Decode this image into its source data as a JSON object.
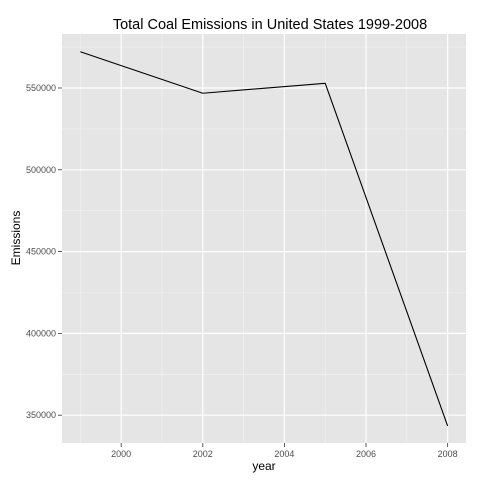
{
  "chart_data": {
    "type": "line",
    "title": "Total Coal Emissions in United States 1999-2008",
    "xlabel": "year",
    "ylabel": "Emissions",
    "x": [
      1999,
      2002,
      2005,
      2008
    ],
    "series": [
      {
        "values": [
          572126,
          546789,
          552881,
          343432
        ]
      }
    ],
    "xlim": [
      1998.55,
      2008.45
    ],
    "ylim": [
      333000,
      583000
    ],
    "xticks": [
      2000,
      2002,
      2004,
      2006,
      2008
    ],
    "xtick_labels": [
      "2000",
      "2002",
      "2004",
      "2006",
      "2008"
    ],
    "yticks": [
      350000,
      400000,
      450000,
      500000,
      550000
    ],
    "ytick_labels": [
      "350000",
      "400000",
      "450000",
      "500000",
      "550000"
    ],
    "grid": true,
    "legend": "none",
    "colors": {
      "panel": "#e5e5e5",
      "grid_major": "#ffffff",
      "grid_minor": "#f2f2f2",
      "line": "#000000",
      "tick_text": "#4d4d4d"
    }
  }
}
